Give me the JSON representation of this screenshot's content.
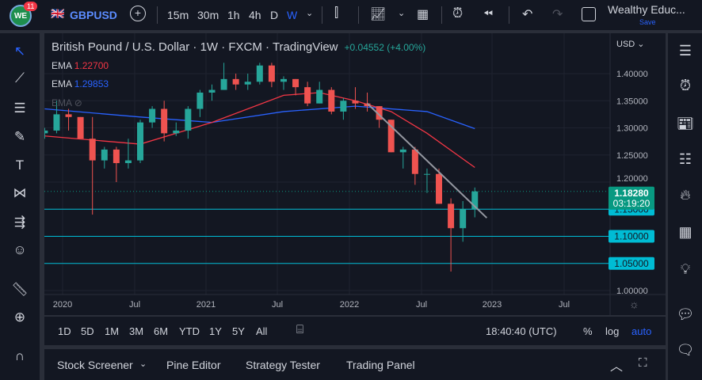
{
  "topbar": {
    "notification_count": "11",
    "logo_text": "WE",
    "symbol": "GBPUSD",
    "intervals": [
      "15m",
      "30m",
      "1h",
      "4h",
      "D",
      "W"
    ],
    "active_interval": "W",
    "layout_name": "Wealthy Educ...",
    "save_label": "Save"
  },
  "legend": {
    "title": "British Pound / U.S. Dollar · 1W · FXCM · TradingView",
    "change": "+0.04552 (+4.00%)",
    "ema1_label": "EMA",
    "ema1_value": "1.22700",
    "ema2_label": "EMA",
    "ema2_value": "1.29853",
    "ema3_label": "EMA"
  },
  "price_axis": {
    "currency": "USD",
    "ticks": [
      "1.40000",
      "1.35000",
      "1.30000",
      "1.25000",
      "1.20000",
      "1.15000",
      "1.10000",
      "1.05000",
      "1.00000"
    ]
  },
  "time_axis": {
    "ticks": [
      "2020",
      "Jul",
      "2021",
      "Jul",
      "2022",
      "Jul",
      "2023",
      "Jul"
    ]
  },
  "last_price": {
    "value": "1.18280",
    "countdown": "03:19:20"
  },
  "levels": [
    "1.15000",
    "1.10000",
    "1.05000"
  ],
  "timeframes": [
    "1D",
    "5D",
    "1M",
    "3M",
    "6M",
    "YTD",
    "1Y",
    "5Y",
    "All"
  ],
  "clock": "18:40:40 (UTC)",
  "scale_opts": [
    "%",
    "log",
    "auto"
  ],
  "bottom_tabs": [
    "Stock Screener",
    "Pine Editor",
    "Strategy Tester",
    "Trading Panel"
  ],
  "colors": {
    "up": "#26a69a",
    "down": "#ef5350",
    "ema_fast": "#f23645",
    "ema_slow": "#2962ff",
    "level": "#00bcd4",
    "last": "#089981",
    "accent": "#2962ff"
  },
  "chart_data": {
    "type": "candlestick",
    "interval": "monthly approximation of weekly chart",
    "ylim": [
      0.99,
      1.44
    ],
    "candles": [
      [
        "2019-11",
        1.29,
        1.3,
        1.28,
        1.295
      ],
      [
        "2019-12",
        1.295,
        1.35,
        1.29,
        1.325
      ],
      [
        "2020-01",
        1.325,
        1.335,
        1.295,
        1.32
      ],
      [
        "2020-02",
        1.32,
        1.32,
        1.28,
        1.28
      ],
      [
        "2020-03",
        1.28,
        1.32,
        1.14,
        1.24
      ],
      [
        "2020-04",
        1.24,
        1.265,
        1.225,
        1.26
      ],
      [
        "2020-05",
        1.26,
        1.265,
        1.2,
        1.235
      ],
      [
        "2020-06",
        1.235,
        1.28,
        1.225,
        1.24
      ],
      [
        "2020-07",
        1.24,
        1.315,
        1.235,
        1.31
      ],
      [
        "2020-08",
        1.31,
        1.34,
        1.3,
        1.335
      ],
      [
        "2020-09",
        1.335,
        1.35,
        1.275,
        1.29
      ],
      [
        "2020-10",
        1.29,
        1.31,
        1.285,
        1.295
      ],
      [
        "2020-11",
        1.295,
        1.34,
        1.28,
        1.335
      ],
      [
        "2020-12",
        1.335,
        1.37,
        1.32,
        1.365
      ],
      [
        "2021-01",
        1.365,
        1.38,
        1.35,
        1.37
      ],
      [
        "2021-02",
        1.37,
        1.42,
        1.37,
        1.39
      ],
      [
        "2021-03",
        1.39,
        1.4,
        1.37,
        1.38
      ],
      [
        "2021-04",
        1.38,
        1.4,
        1.37,
        1.385
      ],
      [
        "2021-05",
        1.385,
        1.42,
        1.38,
        1.415
      ],
      [
        "2021-06",
        1.415,
        1.42,
        1.375,
        1.385
      ],
      [
        "2021-07",
        1.385,
        1.395,
        1.37,
        1.39
      ],
      [
        "2021-08",
        1.39,
        1.39,
        1.36,
        1.375
      ],
      [
        "2021-09",
        1.375,
        1.385,
        1.34,
        1.345
      ],
      [
        "2021-10",
        1.345,
        1.385,
        1.345,
        1.37
      ],
      [
        "2021-11",
        1.37,
        1.375,
        1.325,
        1.33
      ],
      [
        "2021-12",
        1.33,
        1.355,
        1.315,
        1.35
      ],
      [
        "2022-01",
        1.35,
        1.375,
        1.335,
        1.345
      ],
      [
        "2022-02",
        1.345,
        1.365,
        1.33,
        1.34
      ],
      [
        "2022-03",
        1.34,
        1.34,
        1.3,
        1.315
      ],
      [
        "2022-04",
        1.315,
        1.315,
        1.255,
        1.255
      ],
      [
        "2022-05",
        1.255,
        1.265,
        1.225,
        1.26
      ],
      [
        "2022-06",
        1.26,
        1.265,
        1.195,
        1.215
      ],
      [
        "2022-07",
        1.215,
        1.225,
        1.18,
        1.215
      ],
      [
        "2022-08",
        1.215,
        1.225,
        1.16,
        1.16
      ],
      [
        "2022-09",
        1.16,
        1.17,
        1.035,
        1.115
      ],
      [
        "2022-10",
        1.115,
        1.165,
        1.09,
        1.15
      ],
      [
        "2022-11",
        1.15,
        1.19,
        1.135,
        1.1828
      ]
    ],
    "ema_fast": [
      [
        "2019-11",
        1.285
      ],
      [
        "2020-07",
        1.27
      ],
      [
        "2021-01",
        1.31
      ],
      [
        "2021-07",
        1.36
      ],
      [
        "2021-10",
        1.365
      ],
      [
        "2022-01",
        1.35
      ],
      [
        "2022-04",
        1.33
      ],
      [
        "2022-07",
        1.29
      ],
      [
        "2022-11",
        1.227
      ]
    ],
    "ema_slow": [
      [
        "2019-11",
        1.335
      ],
      [
        "2020-07",
        1.32
      ],
      [
        "2021-01",
        1.31
      ],
      [
        "2021-07",
        1.33
      ],
      [
        "2022-01",
        1.34
      ],
      [
        "2022-07",
        1.33
      ],
      [
        "2022-11",
        1.2985
      ]
    ],
    "trendline": [
      [
        "2022-02",
        1.345
      ],
      [
        "2022-12",
        1.134
      ]
    ],
    "horizontal_levels": [
      1.15,
      1.1,
      1.05
    ],
    "last": 1.1828
  }
}
